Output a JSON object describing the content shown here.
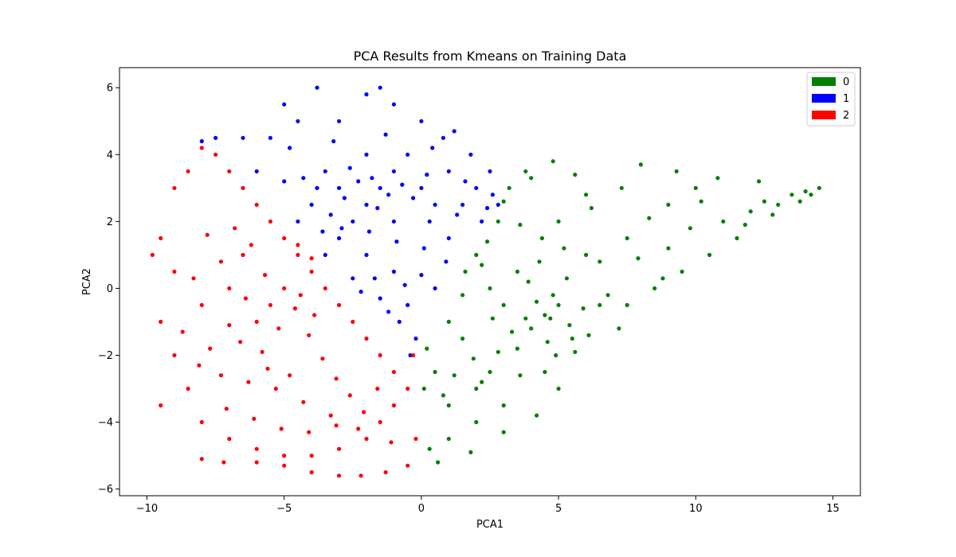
{
  "chart_data": {
    "type": "scatter",
    "title": "PCA Results from Kmeans on Training Data",
    "xlabel": "PCA1",
    "ylabel": "PCA2",
    "xlim": [
      -11,
      16
    ],
    "ylim": [
      -6.2,
      6.6
    ],
    "xticks": [
      -10,
      -5,
      0,
      5,
      10,
      15
    ],
    "xtick_labels": [
      "−10",
      "−5",
      "0",
      "5",
      "10",
      "15"
    ],
    "yticks": [
      -6,
      -4,
      -2,
      0,
      2,
      4,
      6
    ],
    "ytick_labels": [
      "−6",
      "−4",
      "−2",
      "0",
      "2",
      "4",
      "6"
    ],
    "grid": false,
    "legend_position": "top-right",
    "series": [
      {
        "name": "0",
        "color": "#008000",
        "points": [
          [
            4.5,
            -0.8
          ],
          [
            4.0,
            -1.2
          ],
          [
            5.0,
            -0.5
          ],
          [
            3.5,
            -1.8
          ],
          [
            2.5,
            -2.5
          ],
          [
            2.0,
            -3.0
          ],
          [
            1.0,
            -3.5
          ],
          [
            0.5,
            -2.5
          ],
          [
            1.5,
            -1.5
          ],
          [
            3.0,
            -0.5
          ],
          [
            3.5,
            0.5
          ],
          [
            2.5,
            0.0
          ],
          [
            2.0,
            1.0
          ],
          [
            2.8,
            2.0
          ],
          [
            3.2,
            3.0
          ],
          [
            4.0,
            3.3
          ],
          [
            5.0,
            2.0
          ],
          [
            6.0,
            1.0
          ],
          [
            6.5,
            -0.5
          ],
          [
            5.5,
            -1.5
          ],
          [
            4.5,
            -2.5
          ],
          [
            3.0,
            -3.5
          ],
          [
            2.0,
            -4.0
          ],
          [
            1.0,
            -4.5
          ],
          [
            0.3,
            -4.8
          ],
          [
            0.6,
            -5.2
          ],
          [
            1.8,
            -4.9
          ],
          [
            3.0,
            -4.3
          ],
          [
            4.2,
            -3.8
          ],
          [
            5.0,
            -3.0
          ],
          [
            6.5,
            0.8
          ],
          [
            7.5,
            1.5
          ],
          [
            8.0,
            3.7
          ],
          [
            9.0,
            2.5
          ],
          [
            10.0,
            3.0
          ],
          [
            11.0,
            2.0
          ],
          [
            12.0,
            2.3
          ],
          [
            13.0,
            2.5
          ],
          [
            14.0,
            2.9
          ],
          [
            14.5,
            3.0
          ],
          [
            13.5,
            2.8
          ],
          [
            12.5,
            2.6
          ],
          [
            11.5,
            1.5
          ],
          [
            10.5,
            1.0
          ],
          [
            9.5,
            0.5
          ],
          [
            8.5,
            0.0
          ],
          [
            7.5,
            -0.5
          ],
          [
            7.2,
            -1.2
          ],
          [
            8.8,
            0.3
          ],
          [
            10.8,
            3.3
          ],
          [
            12.3,
            3.2
          ],
          [
            9.3,
            3.5
          ],
          [
            7.3,
            3.0
          ],
          [
            6.2,
            2.4
          ],
          [
            5.6,
            3.4
          ],
          [
            4.8,
            3.8
          ],
          [
            3.8,
            3.5
          ],
          [
            4.4,
            1.5
          ],
          [
            5.3,
            0.3
          ],
          [
            4.8,
            -0.2
          ],
          [
            4.2,
            -0.4
          ],
          [
            3.8,
            -0.9
          ],
          [
            4.6,
            -1.6
          ],
          [
            5.4,
            -1.1
          ],
          [
            5.9,
            -0.6
          ],
          [
            3.3,
            -1.3
          ],
          [
            2.8,
            -1.9
          ],
          [
            1.9,
            -2.1
          ],
          [
            1.2,
            -2.6
          ],
          [
            0.8,
            -3.2
          ],
          [
            2.2,
            -2.8
          ],
          [
            3.6,
            -2.6
          ],
          [
            4.9,
            -2.0
          ],
          [
            5.6,
            -1.9
          ],
          [
            6.1,
            -1.4
          ],
          [
            2.6,
            -0.9
          ],
          [
            1.5,
            -0.2
          ],
          [
            1.0,
            -1.0
          ],
          [
            0.2,
            -1.8
          ],
          [
            0.1,
            -3.0
          ],
          [
            1.6,
            0.5
          ],
          [
            2.2,
            0.7
          ],
          [
            3.9,
            0.2
          ],
          [
            4.3,
            0.8
          ],
          [
            5.2,
            1.2
          ],
          [
            6.8,
            -0.2
          ],
          [
            7.9,
            0.9
          ],
          [
            8.3,
            2.1
          ],
          [
            9.8,
            1.8
          ],
          [
            11.8,
            1.9
          ],
          [
            12.8,
            2.2
          ],
          [
            13.8,
            2.6
          ],
          [
            14.2,
            2.8
          ],
          [
            10.2,
            2.6
          ],
          [
            9.0,
            1.2
          ],
          [
            6.0,
            2.8
          ],
          [
            3.0,
            2.6
          ],
          [
            3.6,
            1.9
          ],
          [
            2.4,
            1.4
          ],
          [
            4.7,
            -0.9
          ]
        ]
      },
      {
        "name": "1",
        "color": "#0000ff",
        "points": [
          [
            -1.5,
            3.0
          ],
          [
            -2.0,
            2.5
          ],
          [
            -1.0,
            3.5
          ],
          [
            0.0,
            3.0
          ],
          [
            -3.0,
            3.0
          ],
          [
            -2.5,
            2.0
          ],
          [
            -1.0,
            2.0
          ],
          [
            0.5,
            2.5
          ],
          [
            1.0,
            3.5
          ],
          [
            -0.5,
            4.0
          ],
          [
            -2.0,
            4.0
          ],
          [
            -3.5,
            3.5
          ],
          [
            -4.0,
            2.5
          ],
          [
            -3.0,
            1.5
          ],
          [
            -2.0,
            1.0
          ],
          [
            -1.0,
            0.5
          ],
          [
            -0.5,
            -0.5
          ],
          [
            -0.2,
            -1.5
          ],
          [
            0.5,
            0.0
          ],
          [
            1.0,
            1.5
          ],
          [
            1.5,
            2.5
          ],
          [
            2.0,
            3.0
          ],
          [
            2.5,
            3.5
          ],
          [
            2.8,
            2.5
          ],
          [
            1.8,
            4.0
          ],
          [
            0.8,
            4.5
          ],
          [
            0.0,
            5.0
          ],
          [
            -1.0,
            5.5
          ],
          [
            -1.5,
            6.0
          ],
          [
            -2.0,
            5.8
          ],
          [
            -3.0,
            5.0
          ],
          [
            -3.8,
            6.0
          ],
          [
            -4.5,
            5.0
          ],
          [
            -5.0,
            5.5
          ],
          [
            -5.5,
            4.5
          ],
          [
            -6.5,
            4.5
          ],
          [
            -7.5,
            4.5
          ],
          [
            -8.0,
            4.4
          ],
          [
            -6.0,
            3.5
          ],
          [
            -5.0,
            3.2
          ],
          [
            -4.5,
            2.0
          ],
          [
            -3.5,
            1.0
          ],
          [
            -2.5,
            0.3
          ],
          [
            -1.5,
            -0.3
          ],
          [
            -0.8,
            -1.0
          ],
          [
            -0.4,
            -2.0
          ],
          [
            0.3,
            2.0
          ],
          [
            1.3,
            2.2
          ],
          [
            2.2,
            2.0
          ],
          [
            2.6,
            2.8
          ],
          [
            -1.8,
            3.3
          ],
          [
            -1.2,
            2.8
          ],
          [
            -0.7,
            3.1
          ],
          [
            -2.3,
            3.2
          ],
          [
            -2.8,
            2.7
          ],
          [
            -0.3,
            2.7
          ],
          [
            0.2,
            3.4
          ],
          [
            -1.6,
            2.4
          ],
          [
            -2.6,
            3.6
          ],
          [
            -3.3,
            2.2
          ],
          [
            -0.9,
            1.4
          ],
          [
            0.1,
            1.2
          ],
          [
            -1.9,
            1.7
          ],
          [
            -2.9,
            1.8
          ],
          [
            -3.8,
            3.0
          ],
          [
            -4.3,
            3.3
          ],
          [
            -4.8,
            4.2
          ],
          [
            -3.2,
            4.4
          ],
          [
            -1.3,
            4.6
          ],
          [
            0.4,
            4.2
          ],
          [
            1.2,
            4.7
          ],
          [
            1.6,
            3.2
          ],
          [
            2.4,
            2.4
          ],
          [
            0.9,
            0.8
          ],
          [
            0.0,
            0.4
          ],
          [
            -1.2,
            -0.7
          ],
          [
            -0.6,
            0.1
          ],
          [
            -1.7,
            0.3
          ],
          [
            -2.2,
            -0.1
          ],
          [
            -3.6,
            1.7
          ]
        ]
      },
      {
        "name": "2",
        "color": "#ff0000",
        "points": [
          [
            -6.0,
            -1.0
          ],
          [
            -5.5,
            -0.5
          ],
          [
            -7.0,
            0.0
          ],
          [
            -6.5,
            1.0
          ],
          [
            -8.0,
            -0.5
          ],
          [
            -9.0,
            0.5
          ],
          [
            -9.5,
            -1.0
          ],
          [
            -9.0,
            -2.0
          ],
          [
            -8.5,
            -3.0
          ],
          [
            -8.0,
            -4.0
          ],
          [
            -7.0,
            -4.5
          ],
          [
            -6.0,
            -4.8
          ],
          [
            -5.0,
            -5.0
          ],
          [
            -4.0,
            -5.0
          ],
          [
            -3.0,
            -4.8
          ],
          [
            -2.0,
            -4.5
          ],
          [
            -1.5,
            -4.0
          ],
          [
            -1.0,
            -3.5
          ],
          [
            -0.5,
            -3.0
          ],
          [
            -0.3,
            -2.0
          ],
          [
            -0.2,
            -4.5
          ],
          [
            -0.5,
            -5.3
          ],
          [
            -1.3,
            -5.5
          ],
          [
            -2.2,
            -5.6
          ],
          [
            -3.0,
            -5.6
          ],
          [
            -4.0,
            -5.5
          ],
          [
            -5.0,
            -5.3
          ],
          [
            -6.0,
            -5.2
          ],
          [
            -7.2,
            -5.2
          ],
          [
            -8.0,
            -5.1
          ],
          [
            -9.5,
            -3.5
          ],
          [
            -9.8,
            1.0
          ],
          [
            -9.5,
            1.5
          ],
          [
            -9.0,
            3.0
          ],
          [
            -8.5,
            3.5
          ],
          [
            -8.0,
            4.2
          ],
          [
            -7.5,
            4.0
          ],
          [
            -7.0,
            3.5
          ],
          [
            -6.5,
            3.0
          ],
          [
            -6.0,
            2.5
          ],
          [
            -5.5,
            2.0
          ],
          [
            -5.0,
            1.5
          ],
          [
            -4.5,
            1.0
          ],
          [
            -4.0,
            0.5
          ],
          [
            -3.5,
            0.0
          ],
          [
            -3.0,
            -0.5
          ],
          [
            -2.5,
            -1.0
          ],
          [
            -2.0,
            -1.5
          ],
          [
            -1.5,
            -2.0
          ],
          [
            -1.0,
            -2.5
          ],
          [
            -6.8,
            1.8
          ],
          [
            -6.2,
            1.3
          ],
          [
            -7.3,
            0.8
          ],
          [
            -7.8,
            1.6
          ],
          [
            -8.3,
            0.3
          ],
          [
            -8.7,
            -1.3
          ],
          [
            -7.7,
            -1.8
          ],
          [
            -6.6,
            -1.6
          ],
          [
            -5.8,
            -1.9
          ],
          [
            -5.2,
            -1.2
          ],
          [
            -4.6,
            -0.6
          ],
          [
            -4.1,
            -1.4
          ],
          [
            -3.6,
            -2.1
          ],
          [
            -3.1,
            -2.7
          ],
          [
            -2.6,
            -3.2
          ],
          [
            -2.1,
            -3.7
          ],
          [
            -1.6,
            -3.0
          ],
          [
            -3.3,
            -3.8
          ],
          [
            -4.3,
            -3.4
          ],
          [
            -5.3,
            -3.0
          ],
          [
            -6.3,
            -2.8
          ],
          [
            -7.3,
            -2.6
          ],
          [
            -8.1,
            -2.3
          ],
          [
            -7.1,
            -3.6
          ],
          [
            -6.1,
            -3.9
          ],
          [
            -5.1,
            -4.2
          ],
          [
            -4.1,
            -4.3
          ],
          [
            -3.1,
            -4.1
          ],
          [
            -2.3,
            -4.2
          ],
          [
            -1.1,
            -4.6
          ],
          [
            -4.5,
            1.3
          ],
          [
            -4.0,
            0.9
          ],
          [
            -5.7,
            0.4
          ],
          [
            -6.4,
            -0.3
          ],
          [
            -7.0,
            -1.1
          ],
          [
            -5.0,
            0.0
          ],
          [
            -4.4,
            -0.2
          ],
          [
            -3.9,
            -0.8
          ],
          [
            -5.6,
            -2.4
          ],
          [
            -4.8,
            -2.6
          ]
        ]
      }
    ]
  }
}
